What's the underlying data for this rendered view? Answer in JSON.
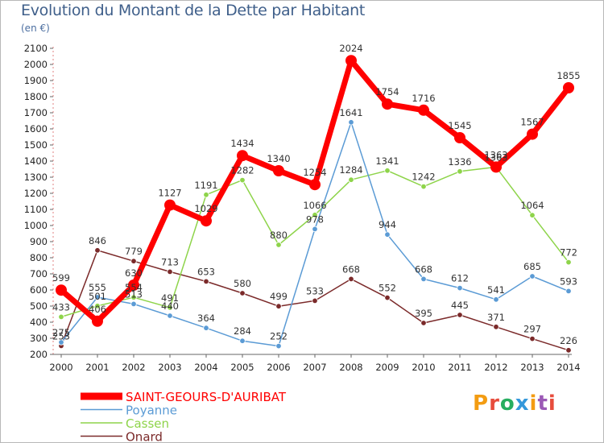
{
  "header": {
    "title": "Evolution du Montant de la Dette par Habitant",
    "unit": "(en €)"
  },
  "chart_data": {
    "type": "line",
    "title": "Evolution du Montant de la Dette par Habitant",
    "ylabel": "(en €)",
    "xlabel": "",
    "x": [
      "2000",
      "2001",
      "2002",
      "2003",
      "2004",
      "2005",
      "2006",
      "2007",
      "2008",
      "2009",
      "2010",
      "2011",
      "2012",
      "2013",
      "2014"
    ],
    "ylim": [
      200,
      2100
    ],
    "yticks": [
      200,
      300,
      400,
      500,
      600,
      700,
      800,
      900,
      1000,
      1100,
      1200,
      1300,
      1400,
      1500,
      1600,
      1700,
      1800,
      1900,
      2000,
      2100
    ],
    "grid": false,
    "legend": "bottom-left",
    "series": [
      {
        "name": "SAINT-GEOURS-D'AURIBAT",
        "color": "#ff0000",
        "values": [
          599,
          406,
          630,
          1127,
          1029,
          1434,
          1340,
          1254,
          2024,
          1754,
          1716,
          1545,
          1363,
          1567,
          1855
        ]
      },
      {
        "name": "Poyanne",
        "color": "#5b9bd5",
        "values": [
          275,
          555,
          513,
          440,
          364,
          284,
          252,
          978,
          1641,
          944,
          668,
          612,
          541,
          685,
          593
        ]
      },
      {
        "name": "Cassen",
        "color": "#8ed44a",
        "values": [
          433,
          501,
          554,
          491,
          1191,
          1282,
          880,
          1066,
          1284,
          1341,
          1242,
          1336,
          1363,
          1064,
          772
        ]
      },
      {
        "name": "Onard",
        "color": "#7b2a2a",
        "values": [
          253,
          846,
          779,
          713,
          653,
          580,
          499,
          533,
          668,
          552,
          395,
          445,
          371,
          297,
          226
        ]
      }
    ],
    "point_labels": [
      [
        "599",
        "406",
        "630",
        "1127",
        "1029",
        "1434",
        "1340",
        "1254",
        "2024",
        "1754",
        "1716",
        "1545",
        "1363",
        "1567",
        "1855"
      ],
      [
        "275",
        "555",
        "513",
        "440",
        "364",
        "284",
        "252",
        "978",
        "1641",
        "944",
        "668",
        "612",
        "541",
        "685",
        "593"
      ],
      [
        "433",
        "501",
        "554",
        "491",
        "1191",
        "1282",
        "880",
        "1066",
        "1284",
        "1341",
        "1242",
        "1336",
        "1363",
        "1064",
        "772"
      ],
      [
        "253",
        "846",
        "779",
        "713",
        "653",
        "580",
        "499",
        "533",
        "668",
        "552",
        "395",
        "445",
        "371",
        "297",
        "226"
      ]
    ]
  },
  "logo": {
    "text": "Proxiti",
    "colors": [
      "#f39c12",
      "#e74c3c",
      "#27ae60",
      "#3498db",
      "#f39c12",
      "#9b59b6",
      "#e74c3c"
    ]
  }
}
